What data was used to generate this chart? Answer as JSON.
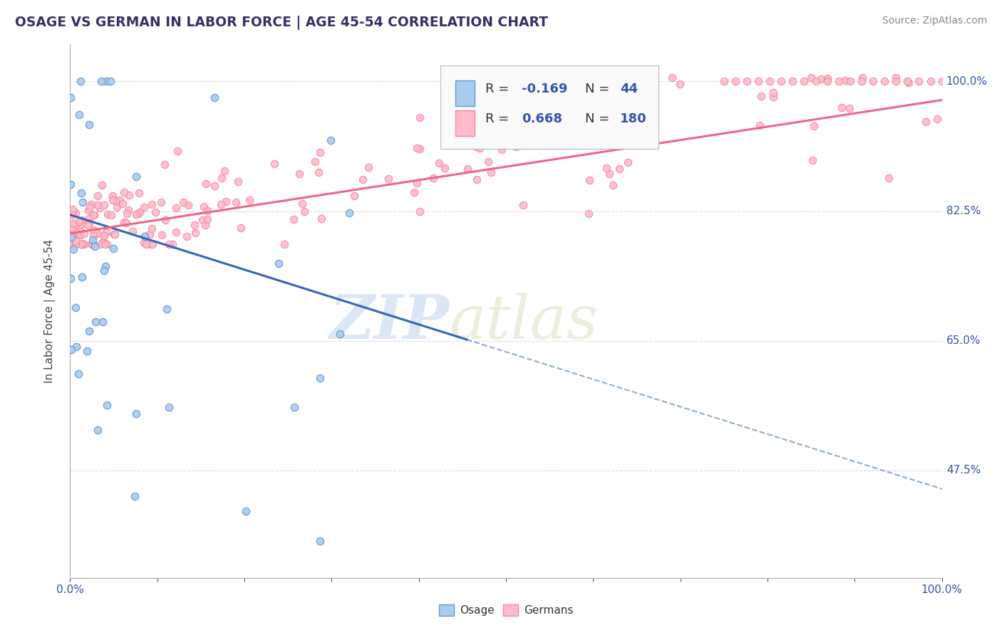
{
  "title": "OSAGE VS GERMAN IN LABOR FORCE | AGE 45-54 CORRELATION CHART",
  "source_text": "Source: ZipAtlas.com",
  "ylabel": "In Labor Force | Age 45-54",
  "xlim": [
    0.0,
    1.0
  ],
  "ylim": [
    0.33,
    1.05
  ],
  "background_color": "#ffffff",
  "grid_color": "#cccccc",
  "legend_R_osage": "-0.169",
  "legend_N_osage": "44",
  "legend_R_german": "0.668",
  "legend_N_german": "180",
  "osage_face_color": "#aaccee",
  "osage_edge_color": "#6699cc",
  "german_face_color": "#ffbbcc",
  "german_edge_color": "#ee8899",
  "osage_line_color": "#3366bb",
  "german_line_color": "#ee6688",
  "legend_text_color": "#333333",
  "legend_value_color": "#3355aa",
  "y_tick_labels": [
    "47.5%",
    "65.0%",
    "82.5%",
    "100.0%"
  ],
  "y_tick_values": [
    0.475,
    0.65,
    0.825,
    1.0
  ],
  "axis_label_color": "#3355aa",
  "title_color": "#333366",
  "source_color": "#888888"
}
